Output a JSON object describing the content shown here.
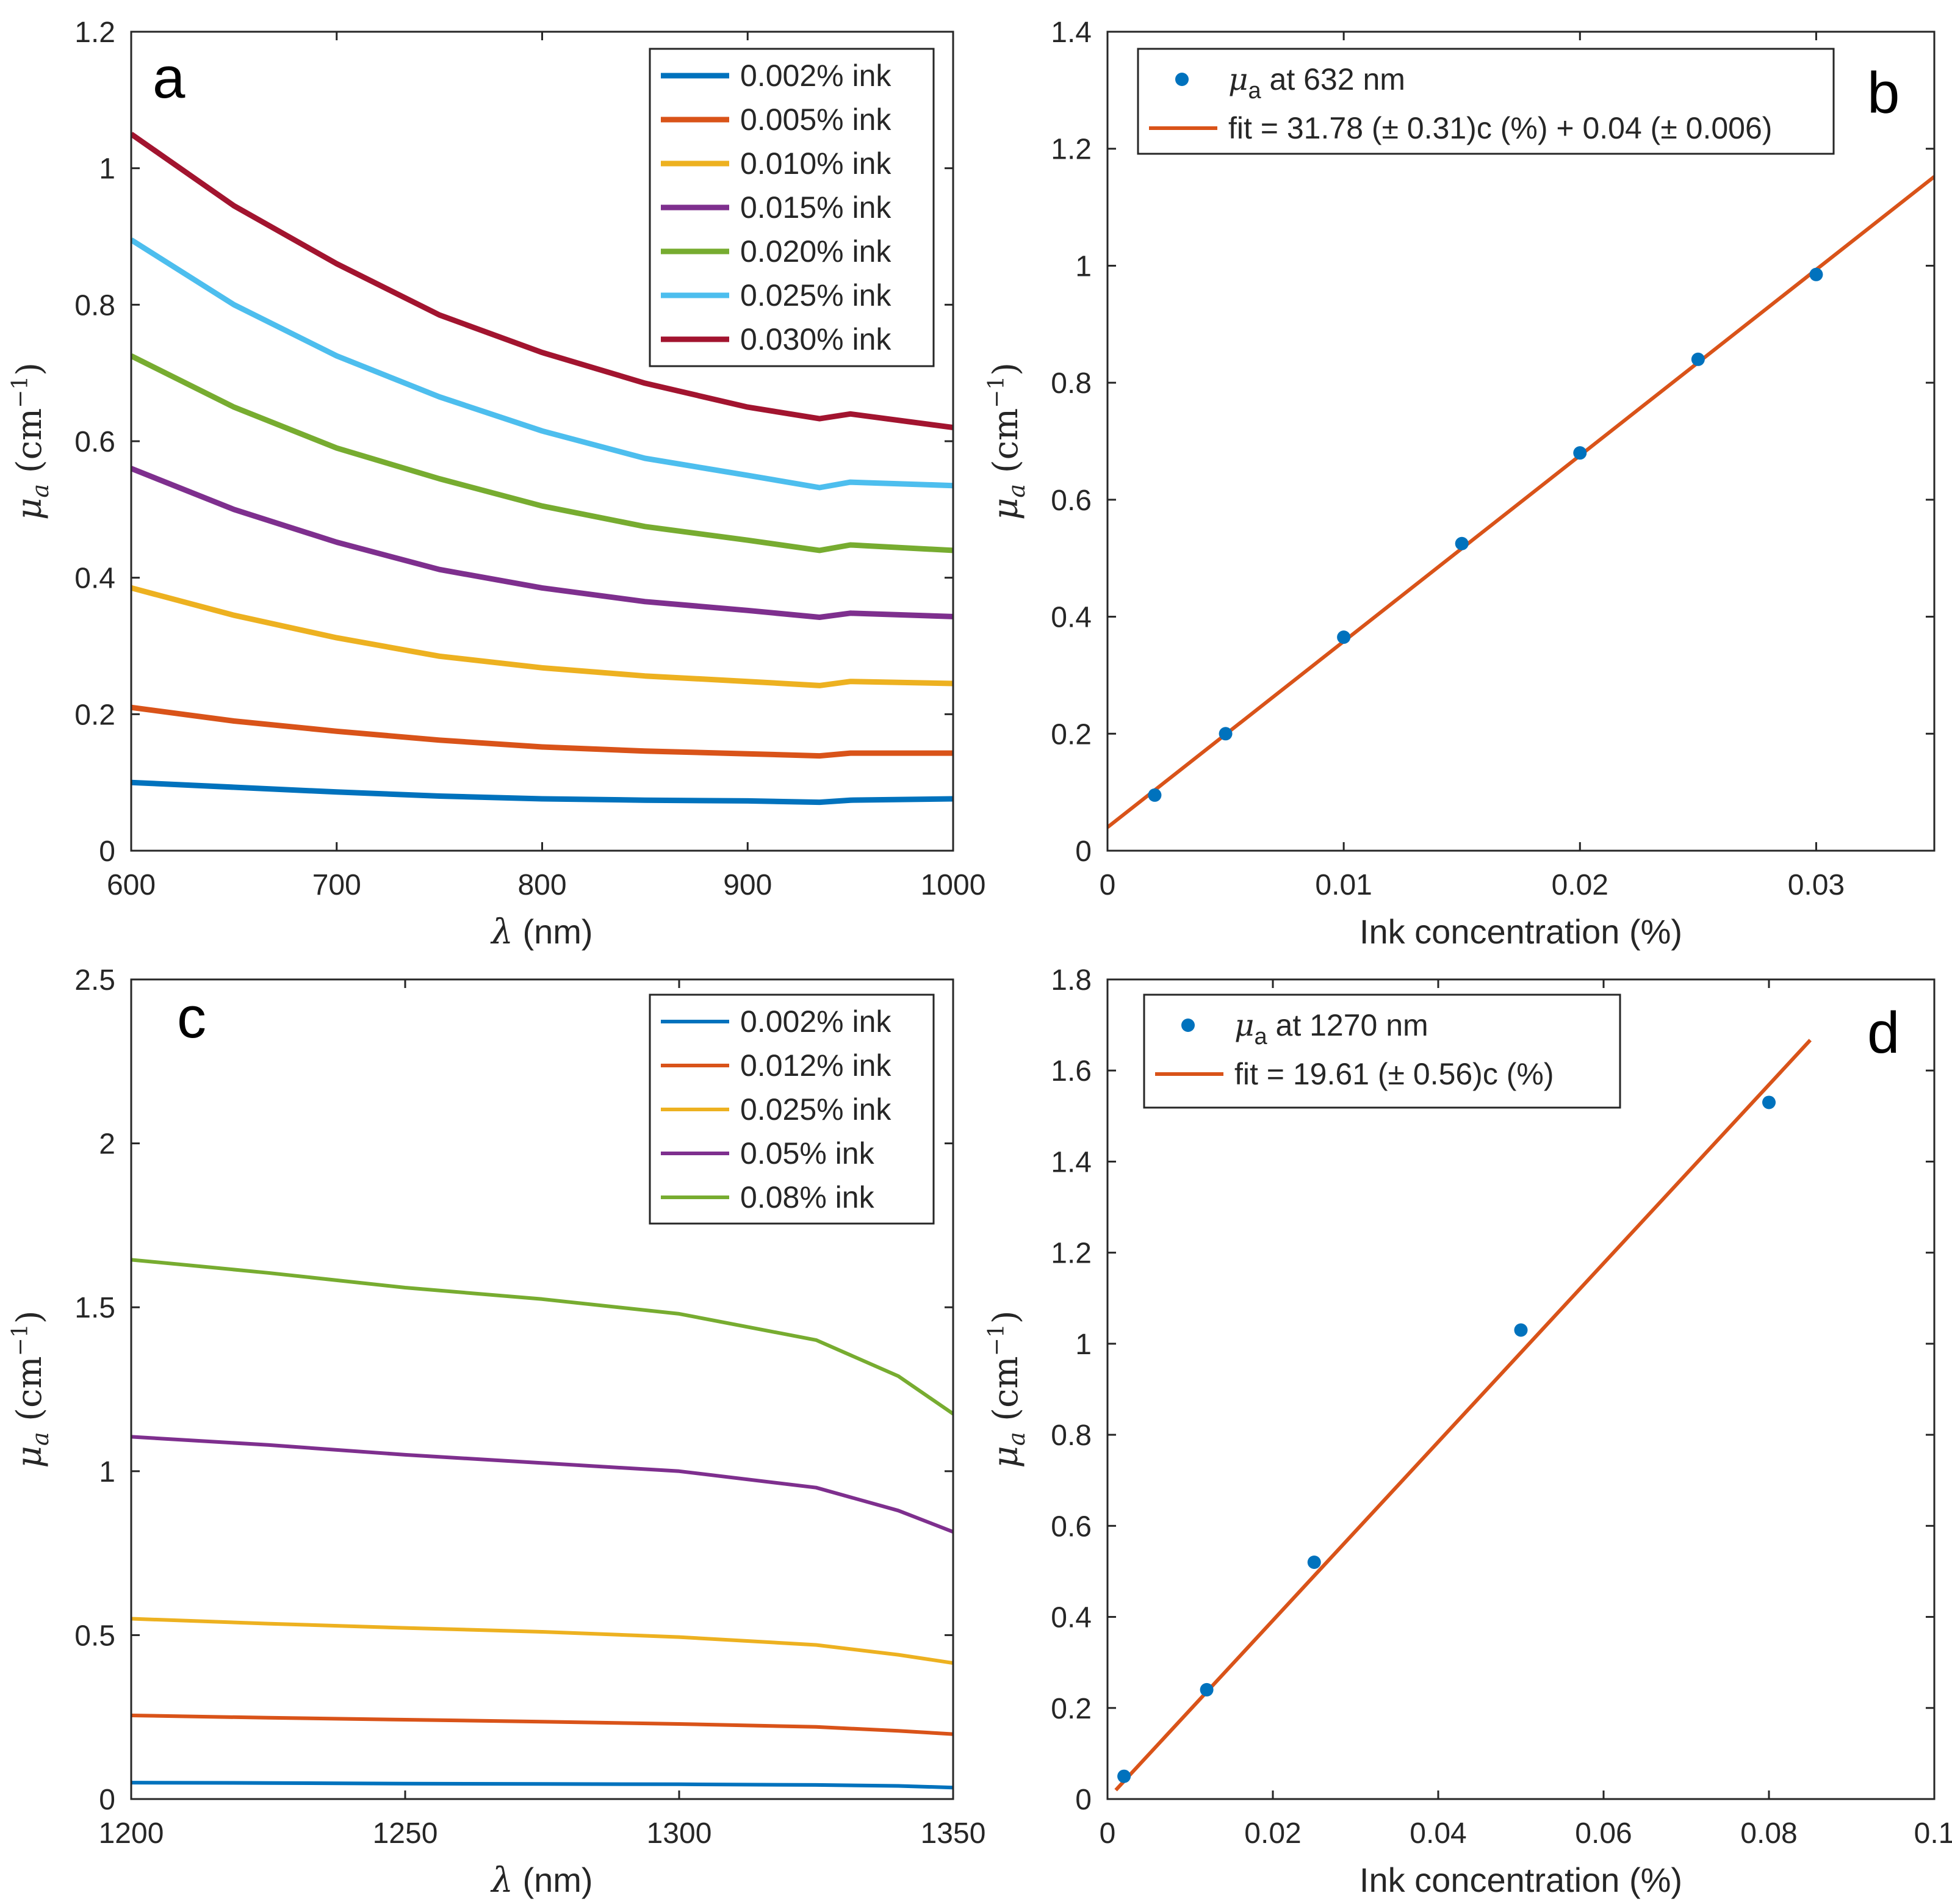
{
  "chart_data": [
    {
      "panel_label": "a",
      "type": "line",
      "xlabel_symbol": "λ",
      "xlabel": " (nm)",
      "ylabel_symbol": "μ",
      "ylabel_sub": "a",
      "ylabel_unit": "(cm",
      "ylabel_exp": "−1",
      "ylabel_close": ")",
      "xlim": [
        600,
        1000
      ],
      "ylim": [
        0,
        1.2
      ],
      "xticks": [
        600,
        700,
        800,
        900,
        1000
      ],
      "xtick_labels": [
        "600",
        "700",
        "800",
        "900",
        "1000"
      ],
      "yticks": [
        0,
        0.2,
        0.4,
        0.6,
        0.8,
        1,
        1.2
      ],
      "ytick_labels": [
        "0",
        "0.2",
        "0.4",
        "0.6",
        "0.8",
        "1",
        "1.2"
      ],
      "legend_position": "top-right",
      "series": [
        {
          "name": "0.002% ink",
          "color": "#0072BD",
          "x": [
            600,
            650,
            700,
            750,
            800,
            850,
            900,
            935,
            950,
            1000
          ],
          "y": [
            0.1,
            0.093,
            0.086,
            0.08,
            0.076,
            0.074,
            0.073,
            0.071,
            0.074,
            0.076
          ]
        },
        {
          "name": "0.005% ink",
          "color": "#D95319",
          "x": [
            600,
            650,
            700,
            750,
            800,
            850,
            900,
            935,
            950,
            1000
          ],
          "y": [
            0.21,
            0.19,
            0.175,
            0.162,
            0.152,
            0.146,
            0.142,
            0.139,
            0.143,
            0.143
          ]
        },
        {
          "name": "0.010% ink",
          "color": "#EDB120",
          "x": [
            600,
            650,
            700,
            750,
            800,
            850,
            900,
            935,
            950,
            1000
          ],
          "y": [
            0.385,
            0.345,
            0.312,
            0.285,
            0.268,
            0.256,
            0.248,
            0.242,
            0.248,
            0.245
          ]
        },
        {
          "name": "0.015% ink",
          "color": "#7E2F8E",
          "x": [
            600,
            650,
            700,
            750,
            800,
            850,
            900,
            935,
            950,
            1000
          ],
          "y": [
            0.56,
            0.5,
            0.452,
            0.412,
            0.385,
            0.365,
            0.352,
            0.342,
            0.348,
            0.343
          ]
        },
        {
          "name": "0.020% ink",
          "color": "#77AC30",
          "x": [
            600,
            650,
            700,
            750,
            800,
            850,
            900,
            935,
            950,
            1000
          ],
          "y": [
            0.725,
            0.65,
            0.59,
            0.545,
            0.505,
            0.475,
            0.455,
            0.44,
            0.448,
            0.44
          ]
        },
        {
          "name": "0.025% ink",
          "color": "#4DBEEE",
          "x": [
            600,
            650,
            700,
            750,
            800,
            850,
            900,
            935,
            950,
            1000
          ],
          "y": [
            0.895,
            0.8,
            0.725,
            0.665,
            0.615,
            0.575,
            0.55,
            0.532,
            0.54,
            0.535
          ]
        },
        {
          "name": "0.030% ink",
          "color": "#A2142F",
          "x": [
            600,
            650,
            700,
            750,
            800,
            850,
            900,
            935,
            950,
            1000
          ],
          "y": [
            1.05,
            0.945,
            0.86,
            0.785,
            0.73,
            0.685,
            0.65,
            0.633,
            0.64,
            0.62
          ]
        }
      ]
    },
    {
      "panel_label": "b",
      "type": "scatter",
      "xlabel": "Ink concentration (%)",
      "ylabel_symbol": "μ",
      "ylabel_sub": "a",
      "ylabel_unit": "(cm",
      "ylabel_exp": "−1",
      "ylabel_close": ")",
      "xlim": [
        0,
        0.035
      ],
      "ylim": [
        0,
        1.4
      ],
      "xticks": [
        0,
        0.01,
        0.02,
        0.03
      ],
      "xtick_labels": [
        "0",
        "0.01",
        "0.02",
        "0.03"
      ],
      "yticks": [
        0,
        0.2,
        0.4,
        0.6,
        0.8,
        1,
        1.2,
        1.4
      ],
      "ytick_labels": [
        "0",
        "0.2",
        "0.4",
        "0.6",
        "0.8",
        "1",
        "1.2",
        "1.4"
      ],
      "legend_position": "top-left",
      "points": {
        "legend_symbol": "μ",
        "legend_sub": "a",
        "legend_rest": " at 632 nm",
        "color": "#0072BD",
        "x": [
          0.002,
          0.005,
          0.01,
          0.015,
          0.02,
          0.025,
          0.03
        ],
        "y": [
          0.095,
          0.2,
          0.365,
          0.525,
          0.68,
          0.84,
          0.985
        ]
      },
      "fit": {
        "name": "fit = 31.78 (± 0.31)c (%) + 0.04 (± 0.006)",
        "color": "#D95319",
        "slope": 31.78,
        "intercept": 0.04,
        "x_range": [
          0,
          0.035
        ]
      }
    },
    {
      "panel_label": "c",
      "type": "line",
      "xlabel_symbol": "λ",
      "xlabel": " (nm)",
      "ylabel_symbol": "μ",
      "ylabel_sub": "a",
      "ylabel_unit": "(cm",
      "ylabel_exp": "−1",
      "ylabel_close": ")",
      "xlim": [
        1200,
        1350
      ],
      "ylim": [
        0,
        2.5
      ],
      "xticks": [
        1200,
        1250,
        1300,
        1350
      ],
      "xtick_labels": [
        "1200",
        "1250",
        "1300",
        "1350"
      ],
      "yticks": [
        0,
        0.5,
        1,
        1.5,
        2,
        2.5
      ],
      "ytick_labels": [
        "0",
        "0.5",
        "1",
        "1.5",
        "2",
        "2.5"
      ],
      "legend_position": "top-right",
      "series": [
        {
          "name": "0.002% ink",
          "color": "#0072BD",
          "x": [
            1200,
            1225,
            1250,
            1275,
            1300,
            1325,
            1340,
            1350
          ],
          "y": [
            0.05,
            0.049,
            0.047,
            0.046,
            0.045,
            0.043,
            0.04,
            0.035
          ]
        },
        {
          "name": "0.012% ink",
          "color": "#D95319",
          "x": [
            1200,
            1225,
            1250,
            1275,
            1300,
            1325,
            1340,
            1350
          ],
          "y": [
            0.255,
            0.248,
            0.242,
            0.236,
            0.229,
            0.22,
            0.208,
            0.198
          ]
        },
        {
          "name": "0.025% ink",
          "color": "#EDB120",
          "x": [
            1200,
            1225,
            1250,
            1275,
            1300,
            1325,
            1340,
            1350
          ],
          "y": [
            0.55,
            0.535,
            0.522,
            0.51,
            0.494,
            0.47,
            0.44,
            0.415
          ]
        },
        {
          "name": "0.05% ink",
          "color": "#7E2F8E",
          "x": [
            1200,
            1225,
            1250,
            1275,
            1300,
            1325,
            1340,
            1350
          ],
          "y": [
            1.105,
            1.08,
            1.05,
            1.025,
            1.0,
            0.95,
            0.88,
            0.815
          ]
        },
        {
          "name": "0.08% ink",
          "color": "#77AC30",
          "x": [
            1200,
            1225,
            1250,
            1275,
            1300,
            1325,
            1340,
            1350
          ],
          "y": [
            1.645,
            1.605,
            1.56,
            1.525,
            1.48,
            1.4,
            1.29,
            1.175
          ]
        }
      ]
    },
    {
      "panel_label": "d",
      "type": "scatter",
      "xlabel": "Ink concentration (%)",
      "ylabel_symbol": "μ",
      "ylabel_sub": "a",
      "ylabel_unit": "(cm",
      "ylabel_exp": "−1",
      "ylabel_close": ")",
      "xlim": [
        0,
        0.1
      ],
      "ylim": [
        0,
        1.8
      ],
      "xticks": [
        0,
        0.02,
        0.04,
        0.06,
        0.08,
        0.1
      ],
      "xtick_labels": [
        "0",
        "0.02",
        "0.04",
        "0.06",
        "0.08",
        "0.1"
      ],
      "yticks": [
        0,
        0.2,
        0.4,
        0.6,
        0.8,
        1,
        1.2,
        1.4,
        1.6,
        1.8
      ],
      "ytick_labels": [
        "0",
        "0.2",
        "0.4",
        "0.6",
        "0.8",
        "1",
        "1.2",
        "1.4",
        "1.6",
        "1.8"
      ],
      "legend_position": "top-left",
      "points": {
        "legend_symbol": "μ",
        "legend_sub": "a",
        "legend_rest": " at 1270 nm",
        "color": "#0072BD",
        "x": [
          0.002,
          0.012,
          0.025,
          0.05,
          0.08
        ],
        "y": [
          0.05,
          0.24,
          0.52,
          1.03,
          1.53
        ]
      },
      "fit": {
        "name": "fit = 19.61 (± 0.56)c (%)",
        "color": "#D95319",
        "slope": 19.61,
        "intercept": 0,
        "x_range": [
          0.001,
          0.085
        ]
      }
    }
  ]
}
